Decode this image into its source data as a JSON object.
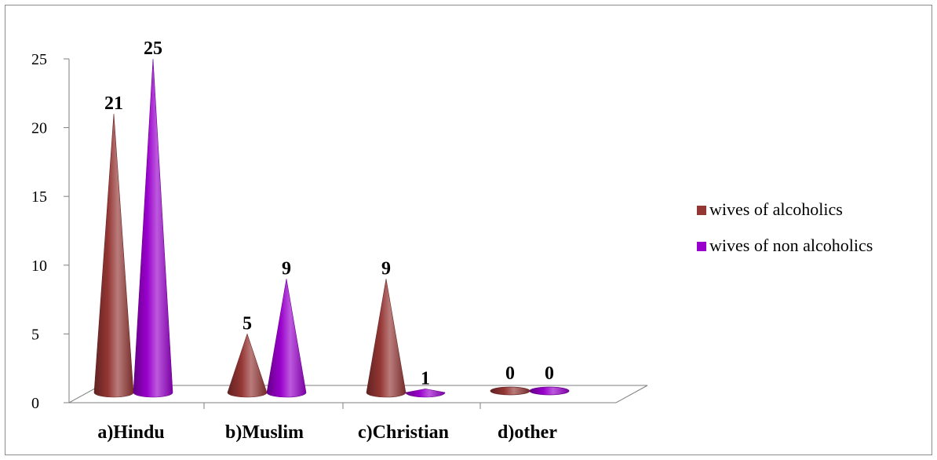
{
  "chart_data": {
    "type": "bar",
    "style": "3d-cone",
    "categories": [
      "a)Hindu",
      "b)Muslim",
      "c)Christian",
      "d)other"
    ],
    "series": [
      {
        "name": "wives of alcoholics",
        "values": [
          21,
          5,
          9,
          0
        ],
        "color": "#943634"
      },
      {
        "name": "wives of non alcoholics",
        "values": [
          25,
          9,
          1,
          0
        ],
        "color": "#9900cc"
      }
    ],
    "ylim": [
      0,
      25
    ],
    "yticks": [
      0,
      5,
      10,
      15,
      20,
      25
    ],
    "legend_position": "right",
    "grid": false
  }
}
